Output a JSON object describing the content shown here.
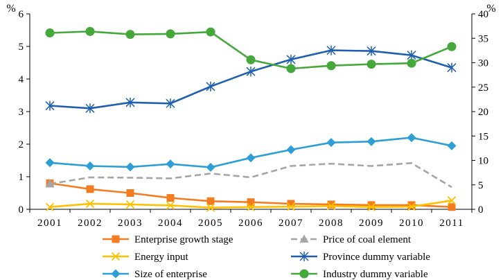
{
  "chart_data": {
    "type": "line",
    "title": "",
    "x": [
      "2001",
      "2002",
      "2003",
      "2004",
      "2005",
      "2006",
      "2007",
      "2008",
      "2009",
      "2010",
      "2011"
    ],
    "left_axis": {
      "unit": "%",
      "ylim": [
        0,
        6
      ],
      "ticks": [
        "0",
        "1",
        "2",
        "3",
        "4",
        "5",
        "6"
      ]
    },
    "right_axis": {
      "unit": "%",
      "ylim": [
        0,
        40
      ],
      "ticks": [
        "0",
        "5",
        "10",
        "15",
        "20",
        "25",
        "30",
        "35",
        "40"
      ]
    },
    "series": [
      {
        "name": "Enterprise growth stage",
        "axis": "left",
        "color": "#f47c20",
        "marker": "square",
        "values": [
          0.8,
          0.62,
          0.5,
          0.35,
          0.25,
          0.22,
          0.17,
          0.15,
          0.13,
          0.13,
          0.07
        ]
      },
      {
        "name": "Price of coal element",
        "axis": "left",
        "color": "#a5a5a5",
        "marker": "triangle",
        "dashed": true,
        "values": [
          0.78,
          0.98,
          0.97,
          0.95,
          1.1,
          0.98,
          1.33,
          1.4,
          1.33,
          1.42,
          0.68
        ]
      },
      {
        "name": "Energy input",
        "axis": "left",
        "color": "#ffc000",
        "marker": "x",
        "values": [
          0.07,
          0.17,
          0.15,
          0.12,
          0.05,
          0.07,
          0.08,
          0.1,
          0.07,
          0.08,
          0.27
        ]
      },
      {
        "name": "Province dummy variable",
        "axis": "left",
        "color": "#1f5fae",
        "marker": "star",
        "values": [
          3.18,
          3.1,
          3.28,
          3.25,
          3.77,
          4.23,
          4.6,
          4.88,
          4.86,
          4.73,
          4.35
        ]
      },
      {
        "name": "Size of enterprise",
        "axis": "left",
        "color": "#2e9fd6",
        "marker": "diamond",
        "values": [
          1.43,
          1.33,
          1.3,
          1.39,
          1.29,
          1.58,
          1.83,
          2.05,
          2.08,
          2.2,
          1.95
        ]
      },
      {
        "name": "Industry dummy variable",
        "axis": "right",
        "color": "#44a83a",
        "marker": "circle",
        "values": [
          36.1,
          36.4,
          35.8,
          35.9,
          36.3,
          30.6,
          28.8,
          29.4,
          29.7,
          29.9,
          33.3
        ]
      }
    ],
    "legend_position": "bottom"
  }
}
